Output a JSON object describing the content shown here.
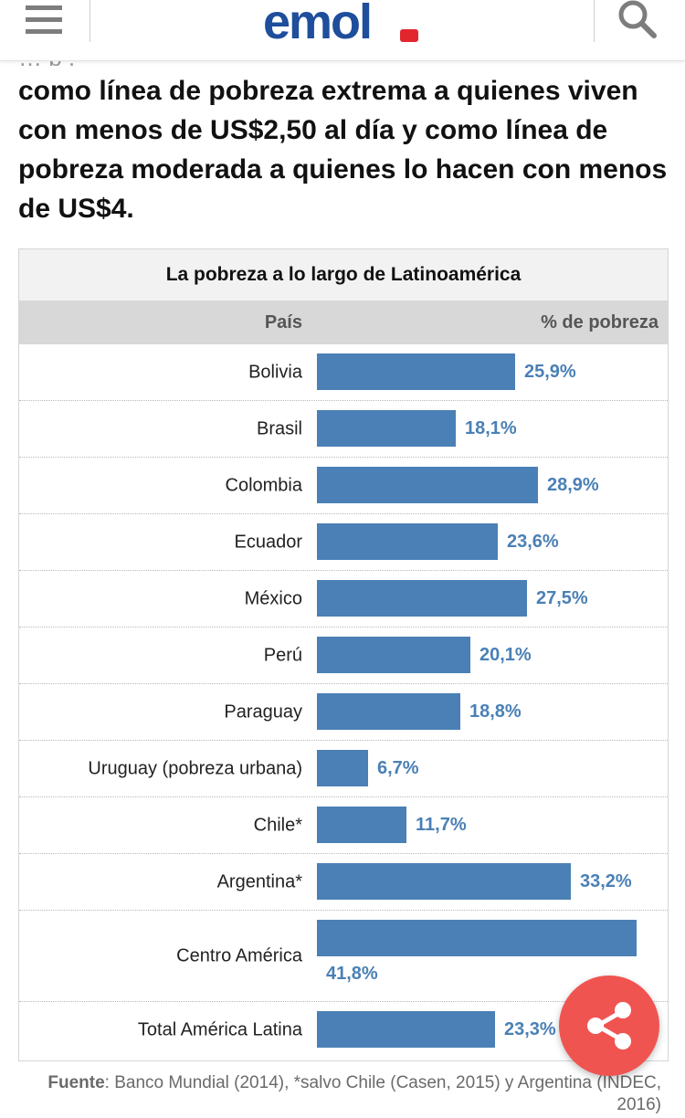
{
  "header": {
    "logo_text": "emol",
    "menu_icon": "hamburger-menu-icon",
    "search_icon": "search-icon",
    "brand_blue": "#1e4e9c",
    "brand_red": "#e3262e"
  },
  "article": {
    "cut_line": "…  p                                    ,",
    "lead_text": "como línea de pobreza extrema a quienes viven con menos de US$2,50 al día y como línea de pobreza moderada a quienes lo hacen con menos de US$4."
  },
  "table": {
    "title": "La pobreza a lo largo de Latinoamérica",
    "col_country": "País",
    "col_value": "% de pobreza",
    "bar_color": "#4a80b5",
    "max_value": 41.8,
    "rows": [
      {
        "country": "Bolivia",
        "value": 25.9,
        "label": "25,9%"
      },
      {
        "country": "Brasil",
        "value": 18.1,
        "label": "18,1%"
      },
      {
        "country": "Colombia",
        "value": 28.9,
        "label": "28,9%"
      },
      {
        "country": "Ecuador",
        "value": 23.6,
        "label": "23,6%"
      },
      {
        "country": "México",
        "value": 27.5,
        "label": "27,5%"
      },
      {
        "country": "Perú",
        "value": 20.1,
        "label": "20,1%"
      },
      {
        "country": "Paraguay",
        "value": 18.8,
        "label": "18,8%"
      },
      {
        "country": "Uruguay (pobreza urbana)",
        "value": 6.7,
        "label": "6,7%"
      },
      {
        "country": "Chile*",
        "value": 11.7,
        "label": "11,7%"
      },
      {
        "country": "Argentina*",
        "value": 33.2,
        "label": "33,2%"
      },
      {
        "country": "Centro América",
        "value": 41.8,
        "label": "41,8%"
      },
      {
        "country": "Total América Latina",
        "value": 23.3,
        "label": "23,3%"
      }
    ]
  },
  "source": {
    "label": "Fuente",
    "text": ": Banco Mundial (2014), *salvo Chile (Casen, 2015) y Argentina (INDEC, 2016)"
  },
  "share": {
    "icon": "share-icon",
    "color": "#f05451"
  }
}
